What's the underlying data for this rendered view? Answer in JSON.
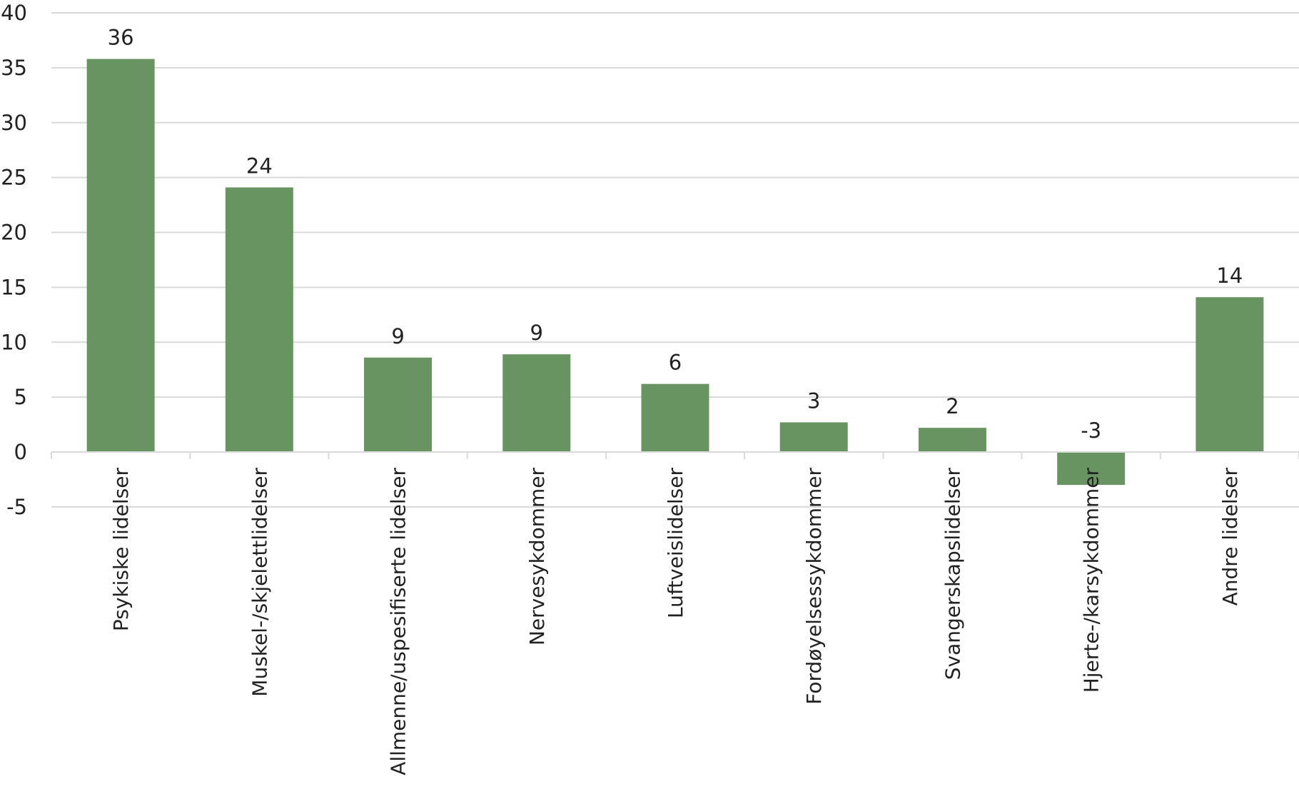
{
  "chart_data": {
    "type": "bar",
    "title": "",
    "xlabel": "",
    "ylabel": "",
    "ylim": [
      -5,
      40
    ],
    "yticks": [
      -5,
      0,
      5,
      10,
      15,
      20,
      25,
      30,
      35,
      40
    ],
    "grid": true,
    "legend": "none",
    "bar_color": "#679461",
    "categories": [
      "Psykiske lidelser",
      "Muskel-/skjelettlidelser",
      "Allmenne/uspesifiserte lidelser",
      "Nervesykdommer",
      "Luftveislidelser",
      "Fordøyelsessykdommer",
      "Svangerskapslidelser",
      "Hjerte-/karsykdommer",
      "Andre lidelser"
    ],
    "values": [
      35.8,
      24.1,
      8.6,
      8.9,
      6.2,
      2.7,
      2.2,
      -3.0,
      14.1
    ],
    "data_labels": [
      "36",
      "24",
      "9",
      "9",
      "6",
      "3",
      "2",
      "-3",
      "14"
    ]
  }
}
